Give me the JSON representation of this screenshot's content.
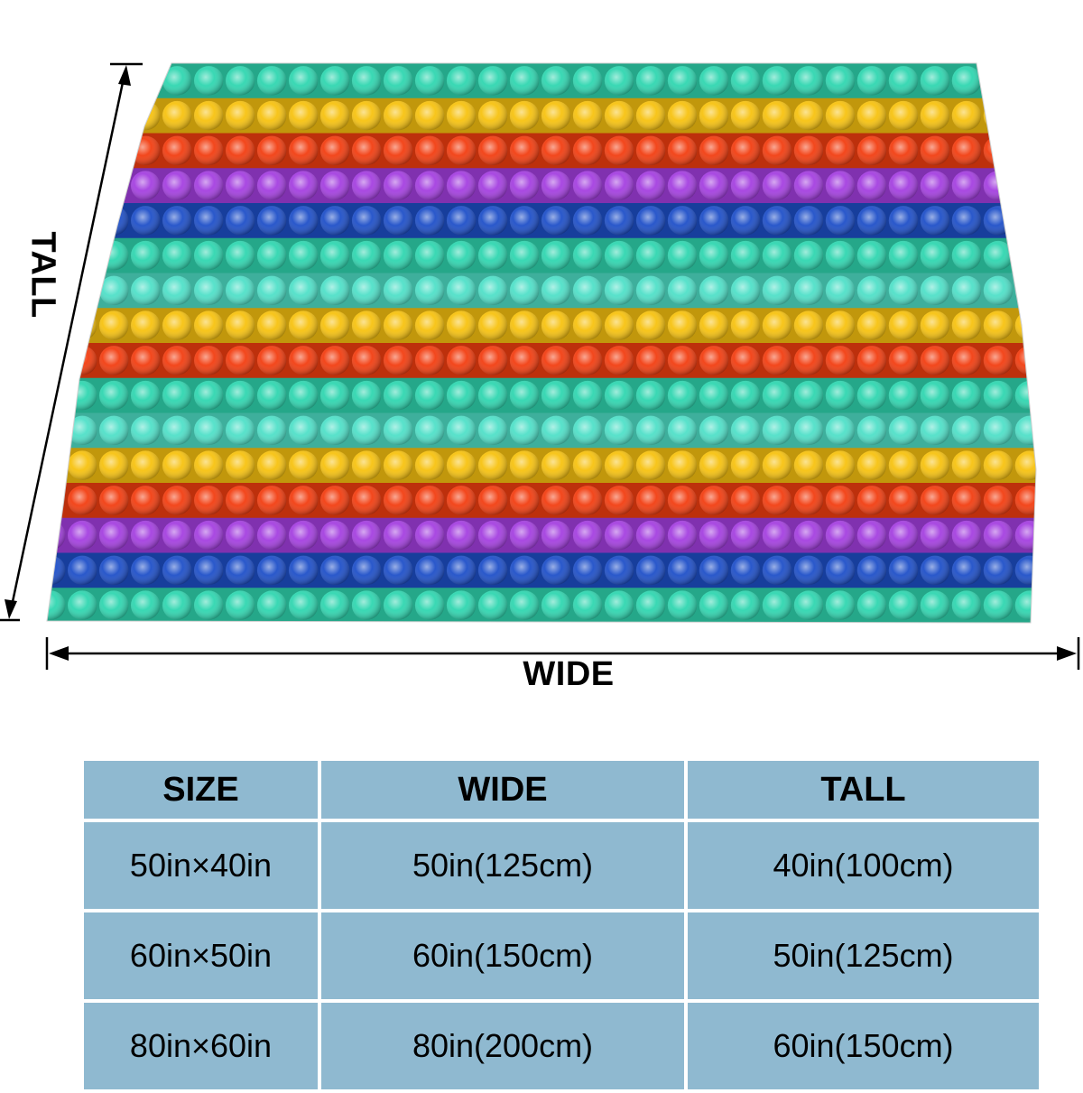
{
  "dimension_labels": {
    "wide": "WIDE",
    "tall": "TALL"
  },
  "blanket": {
    "stripe_colors": [
      "#2fd6b0",
      "#f7c20f",
      "#f23d10",
      "#a43fe0",
      "#1e4fc8",
      "#2fd6b0",
      "#4fe0c8",
      "#f7c20f",
      "#f23d10",
      "#2fd6b0",
      "#4fe0c8",
      "#f7c20f",
      "#f23d10",
      "#a43fe0",
      "#1e4fc8",
      "#2fd6b0"
    ]
  },
  "size_table": {
    "headers": [
      "SIZE",
      "WIDE",
      "TALL"
    ],
    "rows": [
      [
        "50in×40in",
        "50in(125cm)",
        "40in(100cm)"
      ],
      [
        "60in×50in",
        "60in(150cm)",
        "50in(125cm)"
      ],
      [
        "80in×60in",
        "80in(200cm)",
        "60in(150cm)"
      ]
    ]
  },
  "colors": {
    "table_cell": "#8fb9d0",
    "text": "#000000"
  }
}
